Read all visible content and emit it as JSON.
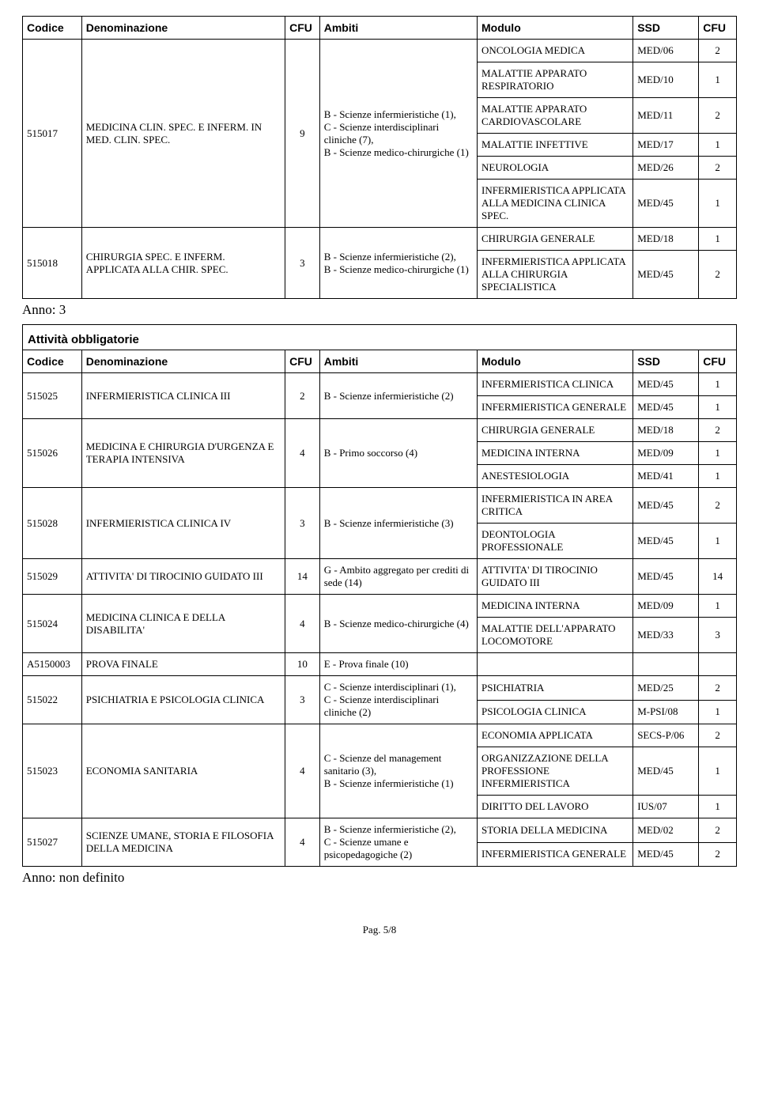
{
  "headers": {
    "codice": "Codice",
    "denominazione": "Denominazione",
    "cfu": "CFU",
    "ambiti": "Ambiti",
    "modulo": "Modulo",
    "ssd": "SSD"
  },
  "table1": {
    "r1": {
      "codice": "515017",
      "denom": "MEDICINA CLIN. SPEC. E INFERM. IN MED. CLIN. SPEC.",
      "cfu": "9",
      "ambiti": "B - Scienze infermieristiche (1),\n C - Scienze interdisciplinari cliniche  (7),\n B - Scienze medico-chirurgiche (1)",
      "m1": {
        "mod": "ONCOLOGIA MEDICA",
        "ssd": "MED/06",
        "cfu": "2"
      },
      "m2": {
        "mod": "MALATTIE APPARATO RESPIRATORIO",
        "ssd": "MED/10",
        "cfu": "1"
      },
      "m3": {
        "mod": "MALATTIE APPARATO CARDIOVASCOLARE",
        "ssd": "MED/11",
        "cfu": "2"
      },
      "m4": {
        "mod": "MALATTIE INFETTIVE",
        "ssd": "MED/17",
        "cfu": "1"
      },
      "m5": {
        "mod": "NEUROLOGIA",
        "ssd": "MED/26",
        "cfu": "2"
      },
      "m6": {
        "mod": "INFERMIERISTICA APPLICATA ALLA MEDICINA CLINICA SPEC.",
        "ssd": "MED/45",
        "cfu": "1"
      }
    },
    "r2": {
      "codice": "515018",
      "denom": "CHIRURGIA SPEC. E INFERM. APPLICATA ALLA CHIR. SPEC.",
      "cfu": "3",
      "ambiti": "B - Scienze infermieristiche (2),\n B - Scienze medico-chirurgiche (1)",
      "m1": {
        "mod": "CHIRURGIA GENERALE",
        "ssd": "MED/18",
        "cfu": "1"
      },
      "m2": {
        "mod": "INFERMIERISTICA APPLICATA ALLA CHIRURGIA SPECIALISTICA",
        "ssd": "MED/45",
        "cfu": "2"
      }
    }
  },
  "anno3": "Anno: 3",
  "section2_title": "Attività obbligatorie",
  "table2": {
    "r1": {
      "codice": "515025",
      "denom": "INFERMIERISTICA CLINICA III",
      "cfu": "2",
      "ambiti": "B - Scienze infermieristiche (2)",
      "m1": {
        "mod": "INFERMIERISTICA CLINICA",
        "ssd": "MED/45",
        "cfu": "1"
      },
      "m2": {
        "mod": "INFERMIERISTICA GENERALE",
        "ssd": "MED/45",
        "cfu": "1"
      }
    },
    "r2": {
      "codice": "515026",
      "denom": "MEDICINA E CHIRURGIA D'URGENZA E TERAPIA INTENSIVA",
      "cfu": "4",
      "ambiti": "B - Primo soccorso (4)",
      "m1": {
        "mod": "CHIRURGIA GENERALE",
        "ssd": "MED/18",
        "cfu": "2"
      },
      "m2": {
        "mod": "MEDICINA INTERNA",
        "ssd": "MED/09",
        "cfu": "1"
      },
      "m3": {
        "mod": "ANESTESIOLOGIA",
        "ssd": "MED/41",
        "cfu": "1"
      }
    },
    "r3": {
      "codice": "515028",
      "denom": "INFERMIERISTICA CLINICA IV",
      "cfu": "3",
      "ambiti": "B - Scienze infermieristiche (3)",
      "m1": {
        "mod": "INFERMIERISTICA IN AREA CRITICA",
        "ssd": "MED/45",
        "cfu": "2"
      },
      "m2": {
        "mod": "DEONTOLOGIA PROFESSIONALE",
        "ssd": "MED/45",
        "cfu": "1"
      }
    },
    "r4": {
      "codice": "515029",
      "denom": "ATTIVITA' DI TIROCINIO GUIDATO III",
      "cfu": "14",
      "ambiti": "G - Ambito aggregato per crediti di sede (14)",
      "m1": {
        "mod": "ATTIVITA' DI TIROCINIO GUIDATO III",
        "ssd": "MED/45",
        "cfu": "14"
      }
    },
    "r5": {
      "codice": "515024",
      "denom": "MEDICINA CLINICA E DELLA DISABILITA'",
      "cfu": "4",
      "ambiti": "B - Scienze medico-chirurgiche (4)",
      "m1": {
        "mod": "MEDICINA INTERNA",
        "ssd": "MED/09",
        "cfu": "1"
      },
      "m2": {
        "mod": "MALATTIE DELL'APPARATO LOCOMOTORE",
        "ssd": "MED/33",
        "cfu": "3"
      }
    },
    "r6": {
      "codice": "A5150003",
      "denom": "PROVA FINALE",
      "cfu": "10",
      "ambiti": "E - Prova finale (10)"
    },
    "r7": {
      "codice": "515022",
      "denom": "PSICHIATRIA E PSICOLOGIA CLINICA",
      "cfu": "3",
      "ambiti": "C - Scienze interdisciplinari (1),\n C - Scienze interdisciplinari cliniche  (2)",
      "m1": {
        "mod": "PSICHIATRIA",
        "ssd": "MED/25",
        "cfu": "2"
      },
      "m2": {
        "mod": "PSICOLOGIA CLINICA",
        "ssd": "M-PSI/08",
        "cfu": "1"
      }
    },
    "r8": {
      "codice": "515023",
      "denom": "ECONOMIA SANITARIA",
      "cfu": "4",
      "ambiti": "C - Scienze del management sanitario (3),\n B - Scienze infermieristiche (1)",
      "m1": {
        "mod": "ECONOMIA APPLICATA",
        "ssd": "SECS-P/06",
        "cfu": "2"
      },
      "m2": {
        "mod": "ORGANIZZAZIONE DELLA PROFESSIONE INFERMIERISTICA",
        "ssd": "MED/45",
        "cfu": "1"
      },
      "m3": {
        "mod": "DIRITTO DEL LAVORO",
        "ssd": "IUS/07",
        "cfu": "1"
      }
    },
    "r9": {
      "codice": "515027",
      "denom": "SCIENZE UMANE, STORIA E FILOSOFIA DELLA MEDICINA",
      "cfu": "4",
      "ambiti": "B - Scienze infermieristiche (2),\n C - Scienze umane e psicopedagogiche (2)",
      "m1": {
        "mod": "STORIA DELLA MEDICINA",
        "ssd": "MED/02",
        "cfu": "2"
      },
      "m2": {
        "mod": "INFERMIERISTICA GENERALE",
        "ssd": "MED/45",
        "cfu": "2"
      }
    }
  },
  "anno_nd": "Anno: non definito",
  "footer": "Pag. 5/8"
}
